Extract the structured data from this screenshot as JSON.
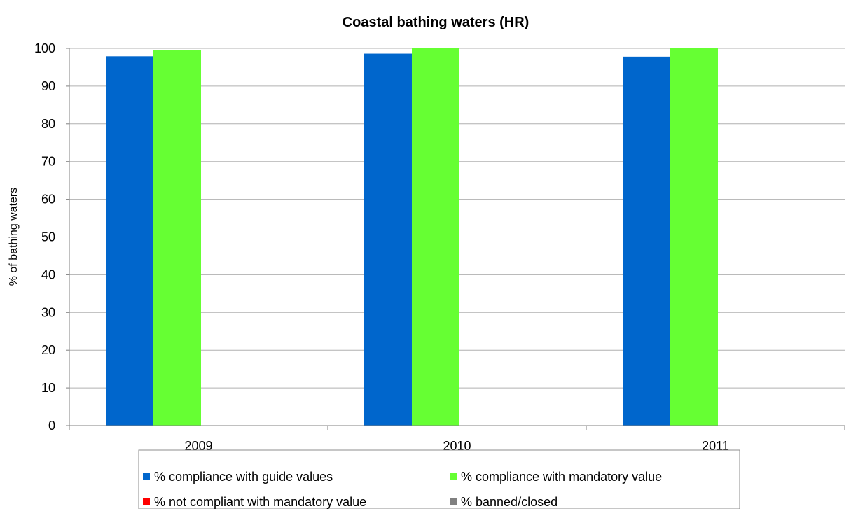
{
  "chart_data": {
    "type": "bar",
    "title": "Coastal bathing waters (HR)",
    "xlabel": "",
    "ylabel": "% of bathing waters",
    "ylim": [
      0,
      100
    ],
    "yticks": [
      0,
      10,
      20,
      30,
      40,
      50,
      60,
      70,
      80,
      90,
      100
    ],
    "categories": [
      "2009",
      "2010",
      "2011"
    ],
    "grid": true,
    "legend_position": "bottom",
    "series": [
      {
        "name": "% compliance with guide values",
        "color": "#0066CC",
        "values": [
          97.9,
          98.6,
          97.8
        ]
      },
      {
        "name": "% compliance with mandatory value",
        "color": "#66FF33",
        "values": [
          99.5,
          100,
          100
        ]
      },
      {
        "name": "% not compliant with mandatory value",
        "color": "#FF0000",
        "values": [
          0,
          0,
          0
        ]
      },
      {
        "name": "% banned/closed",
        "color": "#808080",
        "values": [
          0,
          0,
          0
        ]
      }
    ]
  }
}
